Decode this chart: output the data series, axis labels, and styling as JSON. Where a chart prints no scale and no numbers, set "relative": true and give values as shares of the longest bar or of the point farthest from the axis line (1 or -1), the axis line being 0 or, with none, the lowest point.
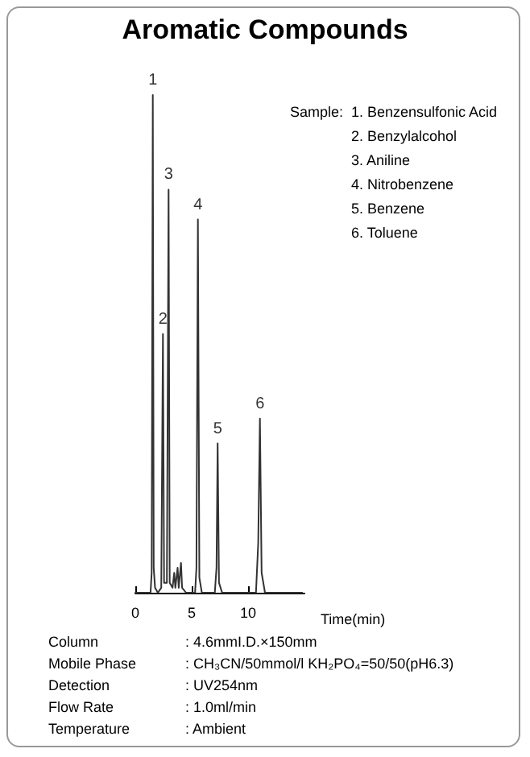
{
  "chart_data": {
    "type": "line",
    "title": "Aromatic Compounds",
    "xlabel": "Time(min)",
    "relative": true,
    "xlim": [
      0,
      15
    ],
    "xticks": [
      0,
      5,
      10
    ],
    "grid": false,
    "marker": "none",
    "line_style": "solid",
    "series": [
      {
        "color": "#333333",
        "x": [
          0,
          1.35,
          1.45,
          1.55,
          1.63,
          1.75,
          2.0,
          2.3,
          2.45,
          2.55,
          2.8,
          2.95,
          3.05,
          3.3,
          3.45,
          3.55,
          3.75,
          3.85,
          4.05,
          4.15,
          4.5,
          5.3,
          5.42,
          5.55,
          5.68,
          5.9,
          7.05,
          7.2,
          7.3,
          7.42,
          7.7,
          10.7,
          10.9,
          11.05,
          11.2,
          11.5,
          14.8
        ],
        "values": [
          0,
          0,
          0.04,
          1,
          0.05,
          0.01,
          0,
          0.01,
          0.52,
          0.02,
          0.02,
          0.81,
          0.02,
          0.01,
          0.04,
          0.01,
          0.05,
          0.01,
          0.06,
          0.01,
          0,
          0,
          0.05,
          0.75,
          0.03,
          0,
          0,
          0.05,
          0.3,
          0.02,
          0,
          0,
          0.1,
          0.35,
          0.04,
          0,
          0
        ]
      }
    ],
    "annotations": [
      "Sample:",
      "1. Benzensulfonic Acid",
      "2. Benzylalcohol",
      "3. Aniline",
      "4. Nitrobenzene",
      "5. Benzene",
      "6. Toluene",
      {
        "text": "1",
        "x": 1.55,
        "y": 1
      },
      {
        "text": "2",
        "x": 2.45,
        "y": 0.52
      },
      {
        "text": "3",
        "x": 2.95,
        "y": 0.81
      },
      {
        "text": "4",
        "x": 5.55,
        "y": 0.75
      },
      {
        "text": "5",
        "x": 7.3,
        "y": 0.3
      },
      {
        "text": "6",
        "x": 11.05,
        "y": 0.35
      },
      "Column : 4.6mmI.D.×150mm",
      "Mobile Phase : CH₃CN/50mmol/l KH₂PO₄=50/50(pH6.3)",
      "Detection : UV254nm",
      "Flow Rate : 1.0ml/min",
      "Temperature : Ambient"
    ]
  }
}
